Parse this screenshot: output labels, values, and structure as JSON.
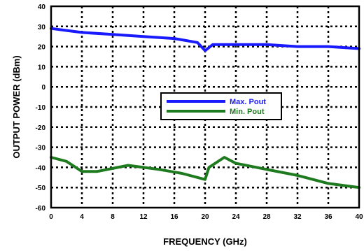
{
  "chart_data": {
    "type": "line",
    "title": "",
    "xlabel": "FREQUENCY (GHz)",
    "ylabel": "OUTPUT POWER (dBm)",
    "xlim": [
      0,
      40
    ],
    "ylim": [
      -60,
      40
    ],
    "xticks": [
      0,
      4,
      8,
      12,
      16,
      20,
      24,
      28,
      32,
      36,
      40
    ],
    "yticks": [
      40,
      30,
      20,
      10,
      0,
      -10,
      -20,
      -30,
      -40,
      -50,
      -60
    ],
    "grid": true,
    "grid_style": "dotted",
    "legend_placement": "center",
    "series": [
      {
        "name": "Max. Pout",
        "color": "#1a1aff",
        "x": [
          0,
          2,
          4,
          8,
          12,
          16,
          19,
          20,
          21,
          23,
          28,
          32,
          36,
          40
        ],
        "y": [
          29,
          28,
          27,
          26,
          25,
          24,
          22,
          18,
          21,
          21,
          21,
          20,
          20,
          19
        ]
      },
      {
        "name": "Min. Pout",
        "color": "#1e7a1e",
        "x": [
          0,
          2,
          4,
          6,
          10,
          14,
          17,
          20,
          20.5,
          22.5,
          24,
          28,
          32,
          36,
          40
        ],
        "y": [
          -35,
          -37,
          -42,
          -42,
          -39,
          -41,
          -43,
          -46,
          -40,
          -35,
          -38,
          -41,
          -44,
          -48,
          -50
        ]
      }
    ]
  }
}
